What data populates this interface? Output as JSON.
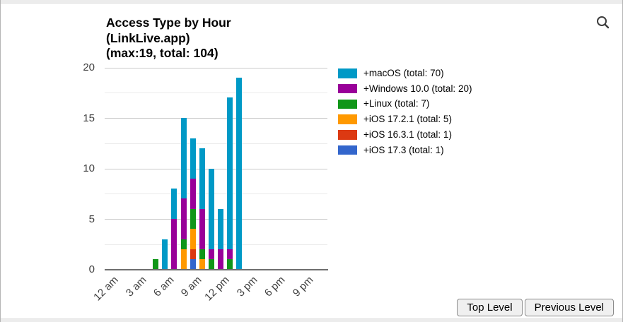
{
  "header": {
    "search_icon": "magnifying-glass"
  },
  "chart_data": {
    "type": "bar",
    "stacked": true,
    "stacking": "reverse-legend-order (first legend series is topmost segment)",
    "title_lines": [
      "Access Type by Hour",
      "(LinkLive.app)",
      "(max:19, total: 104)"
    ],
    "legend_position": "right",
    "grid": true,
    "y_axis": {
      "ticks": [
        0,
        5,
        10,
        15,
        20
      ],
      "ylim": [
        0,
        20
      ],
      "minor_gridline_step": 2.5
    },
    "x_axis": {
      "tick_labels": [
        "12 am",
        "3 am",
        "6 am",
        "9 am",
        "12 pm",
        "3 pm",
        "6 pm",
        "9 pm"
      ],
      "tick_hours": [
        0,
        3,
        6,
        9,
        12,
        15,
        18,
        21
      ],
      "hours_domain": 24
    },
    "categories": [
      "5 am",
      "6 am",
      "7 am",
      "8 am",
      "9 am",
      "10 am",
      "11 am",
      "12 pm",
      "1 pm",
      "2 pm"
    ],
    "category_hours": [
      5,
      6,
      7,
      8,
      9,
      10,
      11,
      12,
      13,
      14
    ],
    "series": [
      {
        "name": "+macOS",
        "total": 70,
        "legend_label": "+macOS (total: 70)",
        "color": "#0099c6",
        "values": [
          0,
          3,
          3,
          8,
          4,
          6,
          8,
          4,
          15,
          19
        ]
      },
      {
        "name": "+Windows 10.0",
        "total": 20,
        "legend_label": "+Windows 10.0 (total: 20)",
        "color": "#990099",
        "values": [
          0,
          0,
          5,
          4,
          3,
          4,
          1,
          2,
          1,
          0
        ]
      },
      {
        "name": "+Linux",
        "total": 7,
        "legend_label": "+Linux (total: 7)",
        "color": "#109618",
        "values": [
          1,
          0,
          0,
          1,
          2,
          1,
          1,
          0,
          1,
          0
        ]
      },
      {
        "name": "+iOS 17.2.1",
        "total": 5,
        "legend_label": "+iOS 17.2.1 (total: 5)",
        "color": "#ff9900",
        "values": [
          0,
          0,
          0,
          2,
          2,
          1,
          0,
          0,
          0,
          0
        ]
      },
      {
        "name": "+iOS 16.3.1",
        "total": 1,
        "legend_label": "+iOS 16.3.1 (total: 1)",
        "color": "#dc3912",
        "values": [
          0,
          0,
          0,
          0,
          1,
          0,
          0,
          0,
          0,
          0
        ]
      },
      {
        "name": "+iOS 17.3",
        "total": 1,
        "legend_label": "+iOS 17.3 (total: 1)",
        "color": "#3366cc",
        "values": [
          0,
          0,
          0,
          0,
          1,
          0,
          0,
          0,
          0,
          0
        ]
      }
    ]
  },
  "footer": {
    "buttons": [
      {
        "label": "Top Level"
      },
      {
        "label": "Previous Level"
      }
    ]
  }
}
